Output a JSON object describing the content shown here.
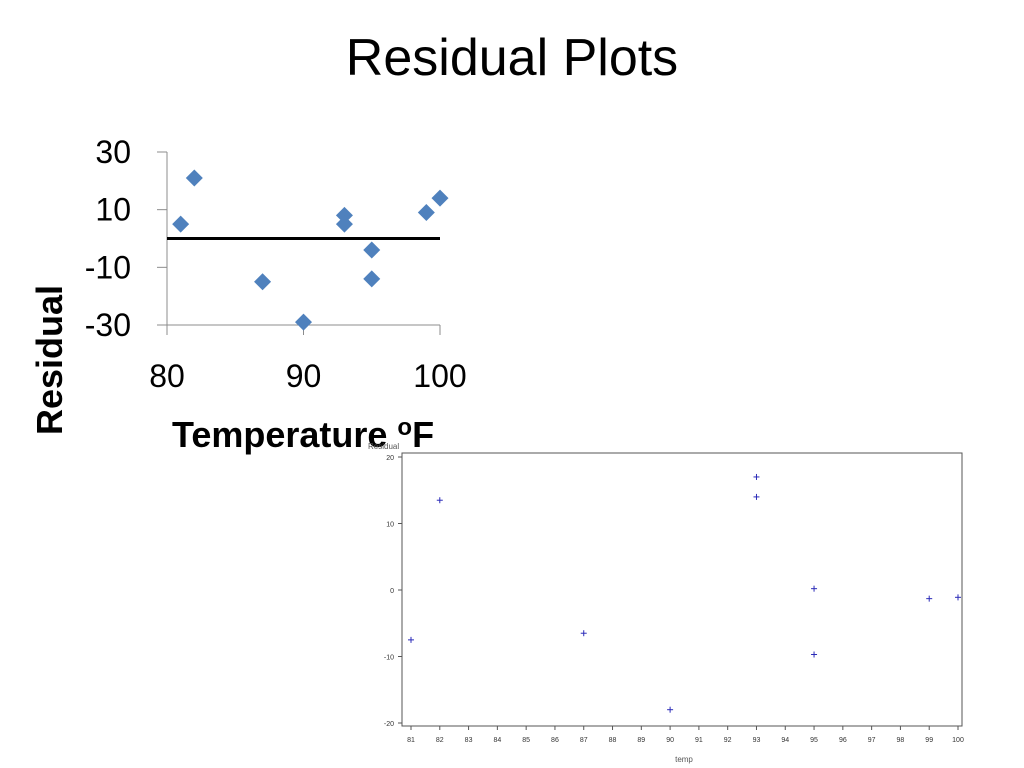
{
  "slide": {
    "title": "Residual Plots"
  },
  "chart_data": [
    {
      "type": "scatter",
      "title": "",
      "xlabel": "Temperature ",
      "xlabel_super": "o",
      "xlabel_unit": "F",
      "ylabel": "Residual",
      "xlim": [
        80,
        100
      ],
      "ylim": [
        -30,
        30
      ],
      "xticks": [
        "80",
        "90",
        "100"
      ],
      "yticks": [
        "30",
        "10",
        "-10",
        "-30"
      ],
      "reference_line_y": 0,
      "marker": "diamond",
      "color": "#4F81BD",
      "points": [
        {
          "x": 81,
          "y": 5
        },
        {
          "x": 82,
          "y": 21
        },
        {
          "x": 87,
          "y": -15
        },
        {
          "x": 90,
          "y": -29
        },
        {
          "x": 93,
          "y": 8
        },
        {
          "x": 93,
          "y": 5
        },
        {
          "x": 95,
          "y": -4
        },
        {
          "x": 95,
          "y": -14
        },
        {
          "x": 99,
          "y": 9
        },
        {
          "x": 100,
          "y": 14
        }
      ]
    },
    {
      "type": "scatter",
      "title": "",
      "xlabel": "temp",
      "ylabel": "Residual",
      "xlim": [
        81,
        100
      ],
      "ylim": [
        -20,
        20
      ],
      "xticks": [
        "81",
        "82",
        "83",
        "84",
        "85",
        "86",
        "87",
        "88",
        "89",
        "90",
        "91",
        "92",
        "93",
        "94",
        "95",
        "96",
        "97",
        "98",
        "99",
        "100"
      ],
      "yticks": [
        "20",
        "10",
        "0",
        "-10",
        "-20"
      ],
      "marker": "plus",
      "color": "#2B2BB8",
      "points": [
        {
          "x": 81,
          "y": -7.5
        },
        {
          "x": 82,
          "y": 13.5
        },
        {
          "x": 87,
          "y": -6.5
        },
        {
          "x": 90,
          "y": -18
        },
        {
          "x": 93,
          "y": 17
        },
        {
          "x": 93,
          "y": 14
        },
        {
          "x": 95,
          "y": 0.2
        },
        {
          "x": 95,
          "y": -9.7
        },
        {
          "x": 99,
          "y": -1.3
        },
        {
          "x": 100,
          "y": -1.1
        }
      ]
    }
  ]
}
